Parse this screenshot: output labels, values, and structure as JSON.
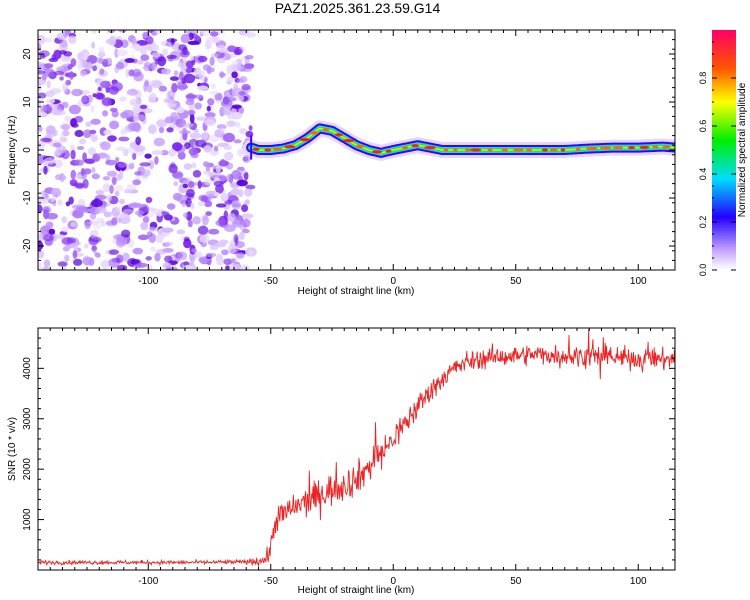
{
  "title": "PAZ1.2025.361.23.59.G14",
  "colors": {
    "snr_line": "#ee2222",
    "spectro_low": "#cc99ff"
  },
  "chart_data": [
    {
      "type": "heatmap",
      "title": "PAZ1.2025.361.23.59.G14",
      "xlabel": "Height of straight line (km)",
      "ylabel": "Frequency (Hz)",
      "xlim": [
        -145,
        115
      ],
      "ylim": [
        -25,
        25
      ],
      "xticks": [
        -100,
        -50,
        0,
        50,
        100
      ],
      "yticks": [
        -20,
        -10,
        0,
        10,
        20
      ],
      "xtick_labels": [
        "-100",
        "-50",
        "0",
        "50",
        "100"
      ],
      "ytick_labels": [
        "-20",
        "-10",
        "0",
        "10",
        "20"
      ],
      "noise_region_x": [
        -145,
        -58
      ],
      "ridge": {
        "x": [
          -58,
          -55,
          -50,
          -45,
          -40,
          -35,
          -30,
          -25,
          -20,
          -15,
          -10,
          -5,
          0,
          5,
          10,
          15,
          20,
          30,
          40,
          50,
          60,
          70,
          80,
          90,
          100,
          110,
          115
        ],
        "freq": [
          0.5,
          0,
          0,
          0.3,
          1,
          2.5,
          4.5,
          4,
          2.5,
          1,
          0,
          -0.6,
          0,
          0.5,
          1,
          0.5,
          0,
          0,
          0,
          0,
          0,
          0,
          0.3,
          0.5,
          0.5,
          0.7,
          0.5
        ]
      },
      "colorbar": {
        "label": "Normalized spectral amplitude",
        "range": [
          0,
          1
        ],
        "ticks": [
          0.0,
          0.2,
          0.4,
          0.6,
          0.8
        ],
        "tick_labels": [
          "0.0",
          "0.2",
          "0.4",
          "0.6",
          "0.8"
        ]
      }
    },
    {
      "type": "line",
      "xlabel": "Height of straight line (km)",
      "ylabel": "SNR (10 * v/v)",
      "xlim": [
        -145,
        115
      ],
      "ylim": [
        0,
        4800
      ],
      "xticks": [
        -100,
        -50,
        0,
        50,
        100
      ],
      "yticks": [
        1000,
        2000,
        3000,
        4000
      ],
      "xtick_labels": [
        "-100",
        "-50",
        "0",
        "50",
        "100"
      ],
      "ytick_labels": [
        "1000",
        "2000",
        "3000",
        "4000"
      ],
      "series": [
        {
          "name": "SNR",
          "x": [
            -145,
            -120,
            -100,
            -80,
            -60,
            -52,
            -50,
            -48,
            -45,
            -40,
            -35,
            -30,
            -25,
            -20,
            -15,
            -10,
            -5,
            0,
            5,
            10,
            15,
            20,
            25,
            30,
            35,
            40,
            50,
            60,
            70,
            80,
            90,
            100,
            110,
            115
          ],
          "values": [
            150,
            150,
            150,
            150,
            160,
            200,
            450,
            1000,
            1100,
            1250,
            1350,
            1500,
            1600,
            1700,
            1800,
            2050,
            2300,
            2600,
            2900,
            3250,
            3550,
            3800,
            4000,
            4120,
            4180,
            4220,
            4250,
            4280,
            4250,
            4250,
            4200,
            4200,
            4180,
            4180
          ],
          "noise": [
            40,
            40,
            40,
            40,
            40,
            150,
            200,
            250,
            300,
            300,
            300,
            330,
            330,
            330,
            330,
            330,
            330,
            300,
            280,
            260,
            240,
            200,
            200,
            200,
            200,
            200,
            200,
            200,
            200,
            200,
            220,
            220,
            220,
            220
          ]
        }
      ]
    }
  ]
}
